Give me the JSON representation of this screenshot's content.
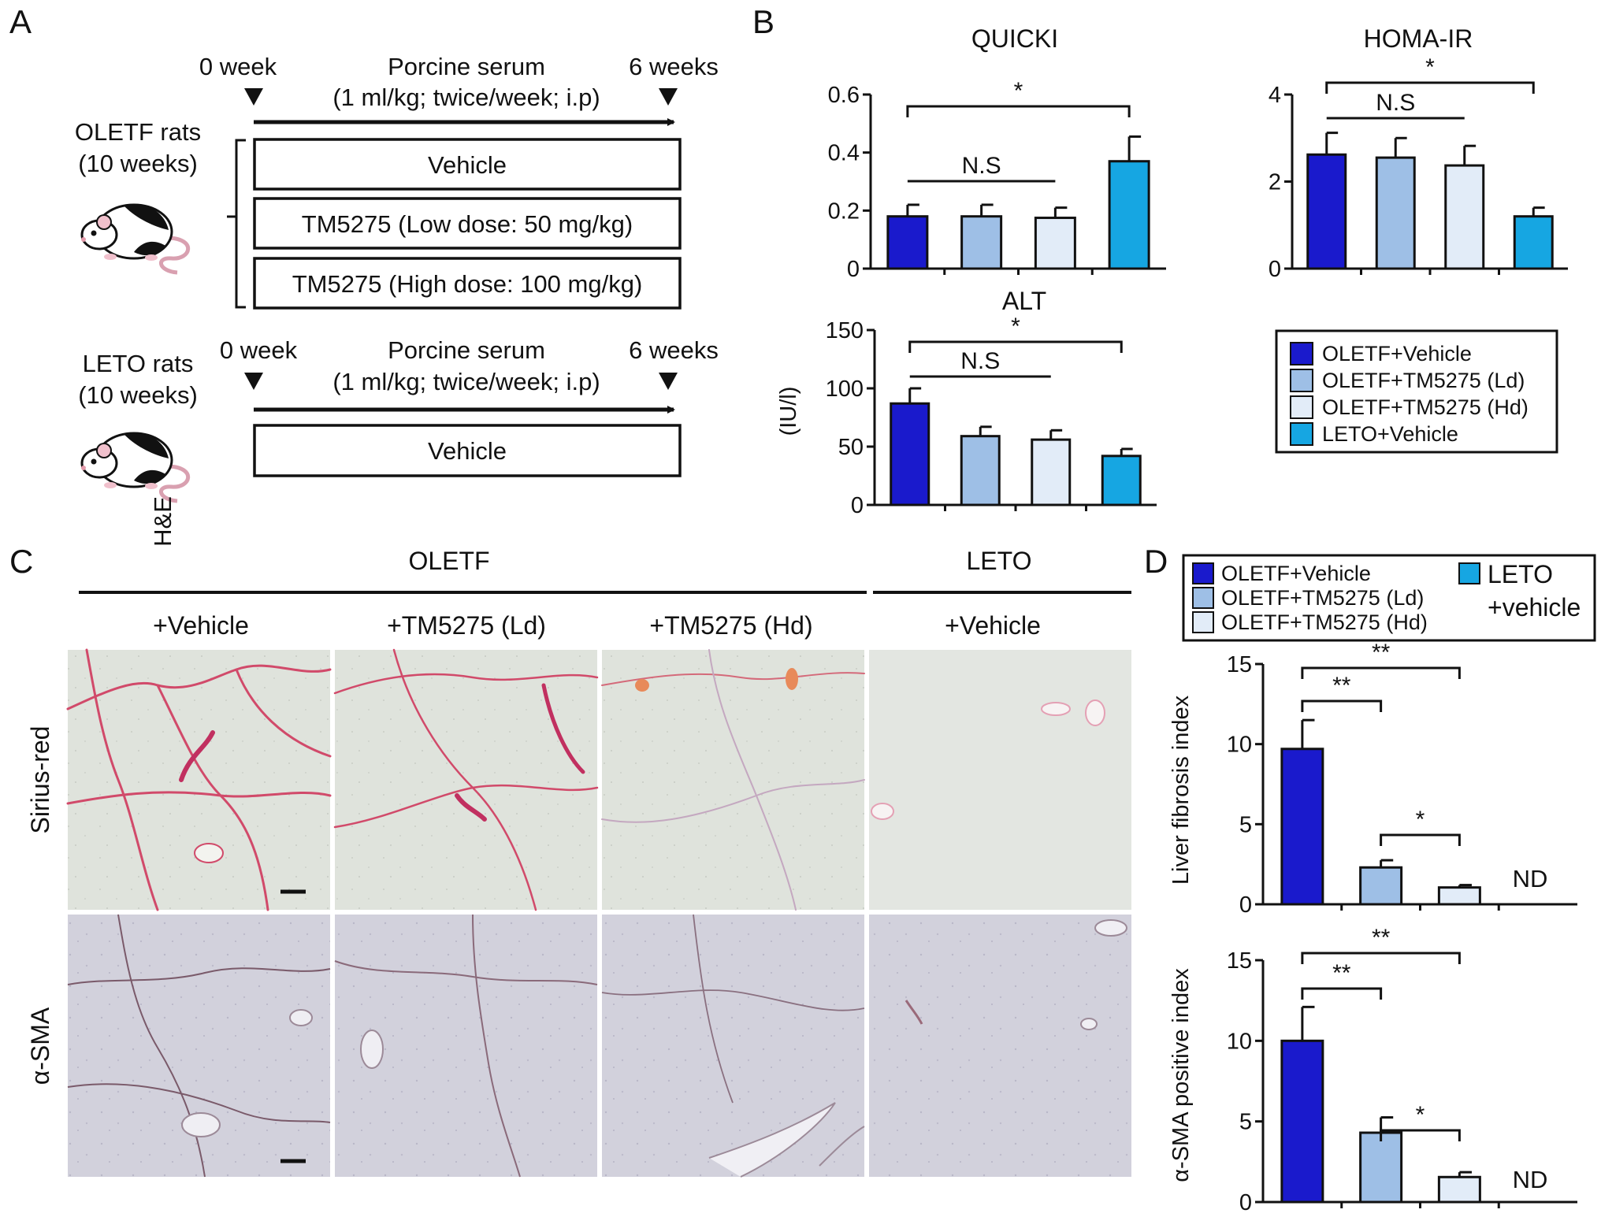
{
  "panel_labels": [
    "A",
    "B",
    "C",
    "D"
  ],
  "colors": {
    "oletf_vehicle": "#1a1acc",
    "oletf_ld": "#9ebfe6",
    "oletf_hd": "#e2ecf8",
    "leto_vehicle": "#16a6e2"
  },
  "panelA": {
    "oletf_rats": "OLETF rats",
    "oletf_age": "(10 weeks)",
    "leto_rats": "LETO rats",
    "leto_age": "(10 weeks)",
    "week0": "0 week",
    "week6": "6 weeks",
    "serum": "Porcine serum",
    "serum_dose": "(1 ml/kg; twice/week; i.p)",
    "groups": [
      "Vehicle",
      "TM5275 (Low dose: 50 mg/kg)",
      "TM5275 (High dose: 100 mg/kg)"
    ],
    "leto_group": "Vehicle",
    "he_label": "H&E"
  },
  "panelB": {
    "legend": [
      "OLETF+Vehicle",
      "OLETF+TM5275 (Ld)",
      "OLETF+TM5275 (Hd)",
      "LETO+Vehicle"
    ]
  },
  "panelC": {
    "oletf": "OLETF",
    "leto": "LETO",
    "columns": [
      "+Vehicle",
      "+TM5275 (Ld)",
      "+TM5275 (Hd)",
      "+Vehicle"
    ],
    "rows": [
      "Sirius-red",
      "α-SMA"
    ]
  },
  "panelD": {
    "legend": [
      "OLETF+Vehicle",
      "OLETF+TM5275 (Ld)",
      "OLETF+TM5275 (Hd)",
      "LETO",
      "+vehicle"
    ],
    "nd": "ND"
  },
  "chart_data": [
    {
      "type": "bar",
      "title": "QUICKI",
      "categories": [
        "OLETF+Vehicle",
        "OLETF+TM5275 (Ld)",
        "OLETF+TM5275 (Hd)",
        "LETO+Vehicle"
      ],
      "values": [
        0.18,
        0.18,
        0.175,
        0.37
      ],
      "errors": [
        0.04,
        0.04,
        0.035,
        0.085
      ],
      "ylim": [
        0,
        0.6
      ],
      "yticks": [
        "0",
        "0.2",
        "0.4",
        "0.6"
      ],
      "ylabel": "",
      "annotations": [
        "N.S",
        "*"
      ]
    },
    {
      "type": "bar",
      "title": "HOMA-IR",
      "categories": [
        "OLETF+Vehicle",
        "OLETF+TM5275 (Ld)",
        "OLETF+TM5275 (Hd)",
        "LETO+Vehicle"
      ],
      "values": [
        2.62,
        2.55,
        2.37,
        1.2
      ],
      "errors": [
        0.5,
        0.45,
        0.45,
        0.2
      ],
      "ylim": [
        0,
        4
      ],
      "yticks": [
        "0",
        "2",
        "4"
      ],
      "ylabel": "",
      "annotations": [
        "N.S",
        "*"
      ]
    },
    {
      "type": "bar",
      "title": "ALT",
      "categories": [
        "OLETF+Vehicle",
        "OLETF+TM5275 (Ld)",
        "OLETF+TM5275 (Hd)",
        "LETO+Vehicle"
      ],
      "values": [
        87,
        59,
        56,
        42
      ],
      "errors": [
        13,
        8,
        8,
        6
      ],
      "ylim": [
        0,
        150
      ],
      "yticks": [
        "0",
        "50",
        "100",
        "150"
      ],
      "ylabel": "(IU/l)",
      "annotations": [
        "N.S",
        "*"
      ]
    },
    {
      "type": "bar",
      "title": "",
      "categories": [
        "OLETF+Vehicle",
        "OLETF+TM5275 (Ld)",
        "OLETF+TM5275 (Hd)",
        "LETO+vehicle"
      ],
      "values": [
        9.7,
        2.3,
        1.05,
        null
      ],
      "errors": [
        1.8,
        0.45,
        0.15,
        null
      ],
      "ylim": [
        0,
        15
      ],
      "yticks": [
        "0",
        "5",
        "10",
        "15"
      ],
      "ylabel": "Liver fibrosis index",
      "annotations": [
        "**",
        "**",
        "*",
        "ND"
      ]
    },
    {
      "type": "bar",
      "title": "",
      "categories": [
        "OLETF+Vehicle",
        "OLETF+TM5275 (Ld)",
        "OLETF+TM5275 (Hd)",
        "LETO+vehicle"
      ],
      "values": [
        10.0,
        4.3,
        1.55,
        null
      ],
      "errors": [
        2.1,
        0.95,
        0.3,
        null
      ],
      "ylim": [
        0,
        15
      ],
      "yticks": [
        "0",
        "5",
        "10",
        "15"
      ],
      "ylabel": "α-SMA positive index",
      "annotations": [
        "**",
        "**",
        "*",
        "ND"
      ]
    }
  ]
}
